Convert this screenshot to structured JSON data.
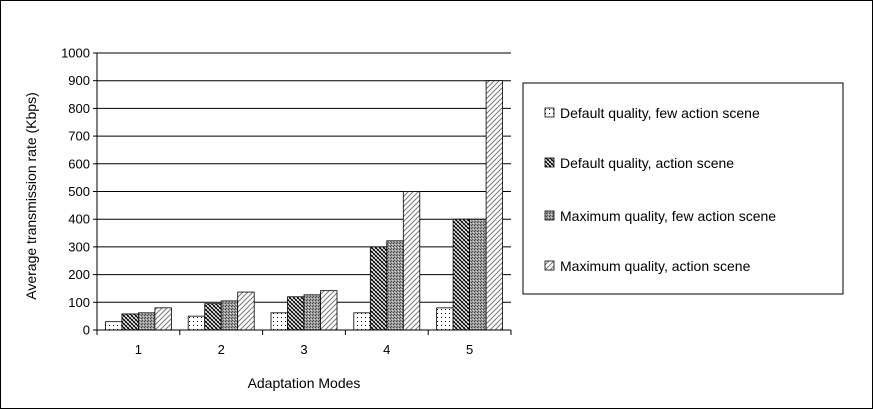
{
  "chart_data": {
    "type": "bar",
    "title": "",
    "xlabel": "Adaptation Modes",
    "ylabel": "Average transmission rate (Kbps)",
    "categories": [
      "1",
      "2",
      "3",
      "4",
      "5"
    ],
    "ylim": [
      0,
      1000
    ],
    "yticks": [
      0,
      100,
      200,
      300,
      400,
      500,
      600,
      700,
      800,
      900,
      1000
    ],
    "ytick_labels": [
      "0",
      "100",
      "200",
      "300",
      "400",
      "500",
      "600",
      "700",
      "800",
      "900",
      "1000"
    ],
    "grid": "horizontal",
    "legend_position": "right",
    "series": [
      {
        "name": "Default quality, few action scene",
        "pattern": "dots",
        "values": [
          30,
          50,
          62,
          62,
          80
        ]
      },
      {
        "name": "Default quality, action scene",
        "pattern": "crosshatch",
        "values": [
          58,
          95,
          120,
          300,
          400
        ]
      },
      {
        "name": "Maximum quality, few action scene",
        "pattern": "dense-gray",
        "values": [
          62,
          105,
          127,
          322,
          400
        ]
      },
      {
        "name": "Maximum quality, action scene",
        "pattern": "diagonal",
        "values": [
          80,
          137,
          142,
          500,
          900
        ]
      }
    ]
  }
}
